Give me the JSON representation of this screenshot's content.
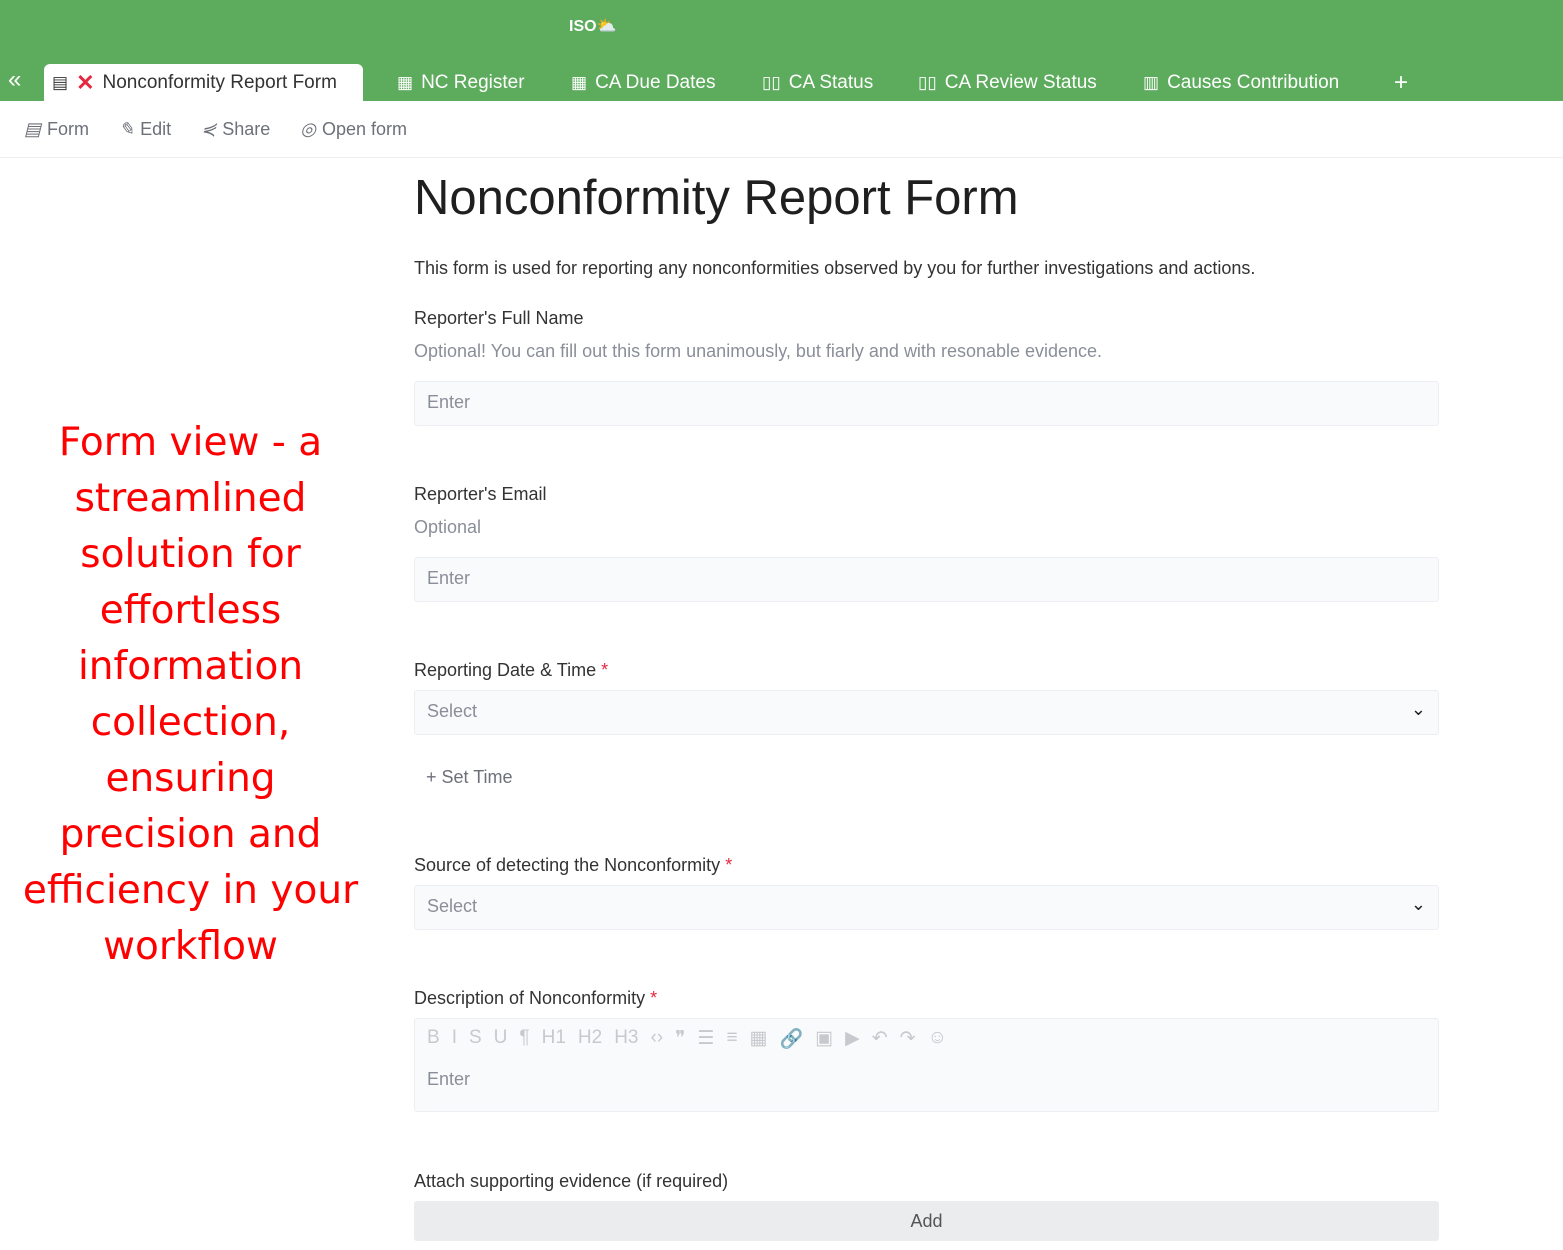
{
  "app": {
    "logo": "ISO⛅"
  },
  "tabs": [
    {
      "label": "Nonconformity Report Form",
      "icon": "form-icon",
      "active": true
    },
    {
      "label": "NC Register",
      "icon": "grid-icon"
    },
    {
      "label": "CA Due Dates",
      "icon": "calendar-icon"
    },
    {
      "label": "CA Status",
      "icon": "kanban-icon"
    },
    {
      "label": "CA Review Status",
      "icon": "kanban-icon"
    },
    {
      "label": "Causes Contribution",
      "icon": "chart-icon"
    }
  ],
  "add_tab": "+",
  "toolbar": {
    "form": "Form",
    "edit": "Edit",
    "share": "Share",
    "open_form": "Open form"
  },
  "annotation": "Form view - a streamlined solution for effortless information collection, ensuring precision and efficiency in your workflow",
  "form": {
    "title": "Nonconformity Report Form",
    "description": "This form is used for reporting any nonconformities observed by you for further investigations and actions.",
    "fields": [
      {
        "label": "Reporter's Full Name",
        "hint": "Optional! You can fill out this form unanimously, but fiarly and with resonable evidence.",
        "placeholder": "Enter"
      },
      {
        "label": "Reporter's Email",
        "hint": "Optional",
        "placeholder": "Enter"
      },
      {
        "label": "Reporting Date & Time",
        "required": "*",
        "placeholder": "Select",
        "extra": "+ Set Time"
      },
      {
        "label": "Source of detecting the Nonconformity",
        "required": "*",
        "placeholder": "Select"
      },
      {
        "label": "Description of Nonconformity",
        "required": "*",
        "placeholder": "Enter"
      },
      {
        "label": "Attach supporting evidence (if required)",
        "button": "Add"
      }
    ],
    "rte_toolbar": [
      "B",
      "I",
      "S",
      "U",
      "¶",
      "H1",
      "H2",
      "H3",
      "‹›",
      "❞",
      "☰",
      "≡",
      "▦",
      "🔗",
      "▣",
      "▶",
      "↶",
      "↷",
      "☺"
    ]
  }
}
